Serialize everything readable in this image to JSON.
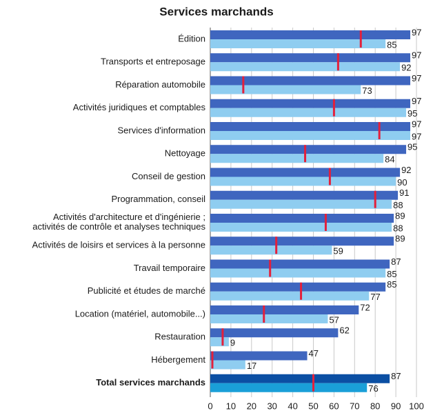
{
  "chart_data": {
    "type": "bar",
    "orientation": "horizontal",
    "title": "Services marchands",
    "categories": [
      "Édition",
      "Transports et entreposage",
      "Réparation automobile",
      "Activités juridiques et comptables",
      "Services d'information",
      "Nettoyage",
      "Conseil de gestion",
      "Programmation, conseil",
      "Activités d'architecture et d'ingénierie ;\nactivités de contrôle et analyses techniques",
      "Activités de loisirs et services à la personne",
      "Travail temporaire",
      "Publicité et études de marché",
      "Location (matériel, automobile...)",
      "Restauration",
      "Hébergement",
      "Total services marchands"
    ],
    "series": [
      {
        "color": "#3f66bf",
        "highlight_color": "#0b4fa3",
        "values": [
          97,
          97,
          97,
          97,
          97,
          95,
          92,
          91,
          89,
          89,
          87,
          85,
          72,
          62,
          47,
          87
        ]
      },
      {
        "color": "#8fcdf0",
        "highlight_color": "#1a9fd8",
        "values": [
          85,
          92,
          73,
          95,
          97,
          84,
          90,
          88,
          88,
          59,
          85,
          77,
          57,
          9,
          17,
          76
        ]
      },
      {
        "color": "#e3203b",
        "marker": "line",
        "values": [
          73,
          62,
          16,
          60,
          82,
          46,
          58,
          80,
          56,
          32,
          29,
          44,
          26,
          6,
          1,
          50
        ]
      }
    ],
    "highlight_last": true,
    "xlim": [
      0,
      100
    ],
    "xticks": [
      0,
      10,
      20,
      30,
      40,
      50,
      60,
      70,
      80,
      90,
      100
    ],
    "grid": true
  }
}
